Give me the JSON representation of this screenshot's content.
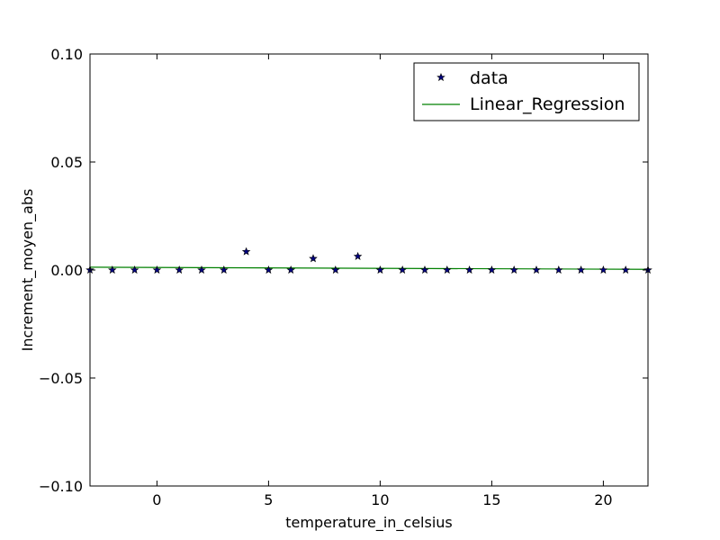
{
  "chart_data": {
    "type": "scatter",
    "xlabel": "temperature_in_celsius",
    "ylabel": "Increment_moyen_abs",
    "xlim": [
      -3,
      22
    ],
    "ylim": [
      -0.1,
      0.1
    ],
    "x_ticks": [
      0,
      5,
      10,
      15,
      20
    ],
    "x_tick_labels": [
      "0",
      "5",
      "10",
      "15",
      "20"
    ],
    "y_ticks": [
      -0.1,
      -0.05,
      0.0,
      0.05,
      0.1
    ],
    "y_tick_labels": [
      "−0.10",
      "−0.05",
      "0.00",
      "0.05",
      "0.10"
    ],
    "grid": false,
    "legend_position": "top-right",
    "series": [
      {
        "name": "data",
        "kind": "scatter",
        "marker": "star",
        "color": "#000080",
        "x": [
          -3,
          -2,
          -1,
          0,
          1,
          2,
          3,
          4,
          5,
          6,
          7,
          8,
          9,
          10,
          11,
          12,
          13,
          14,
          15,
          16,
          17,
          18,
          19,
          20,
          21,
          22
        ],
        "y": [
          0.0,
          0.0,
          0.0,
          0.0,
          0.0,
          0.0,
          0.0,
          0.0085,
          0.0,
          0.0,
          0.0053,
          0.0,
          0.0063,
          0.0,
          0.0,
          0.0,
          0.0,
          0.0,
          0.0,
          0.0,
          0.0,
          0.0,
          0.0,
          0.0,
          0.0,
          0.0
        ]
      },
      {
        "name": "Linear_Regression",
        "kind": "line",
        "color": "#008000",
        "x": [
          -3,
          22
        ],
        "y": [
          0.0013,
          0.0003
        ]
      }
    ]
  }
}
